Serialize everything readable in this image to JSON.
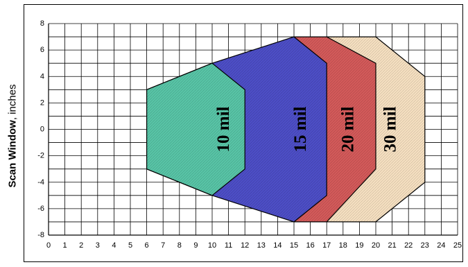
{
  "chart_data": {
    "type": "area",
    "title": "",
    "xlabel": "",
    "ylabel_bold": "Scan Window",
    "ylabel_rest": ", inches",
    "xlim": [
      0,
      25
    ],
    "ylim": [
      -8,
      8
    ],
    "x_ticks": [
      "0",
      "1",
      "2",
      "3",
      "4",
      "5",
      "6",
      "7",
      "8",
      "9",
      "10",
      "11",
      "12",
      "13",
      "14",
      "15",
      "16",
      "17",
      "18",
      "19",
      "20",
      "21",
      "22",
      "23",
      "24",
      "25"
    ],
    "y_ticks": [
      "8",
      "6",
      "4",
      "2",
      "0",
      "-2",
      "-4",
      "-6",
      "-8"
    ],
    "grid": true,
    "series": [
      {
        "name": "30 mil",
        "color": "#f5dfc0",
        "label_at": [
          20.9,
          0
        ],
        "points": [
          [
            17,
            7
          ],
          [
            20,
            7
          ],
          [
            23,
            4
          ],
          [
            23,
            -4
          ],
          [
            20,
            -7
          ],
          [
            17,
            -7
          ]
        ]
      },
      {
        "name": "20 mil",
        "color": "#d35a5a",
        "label_at": [
          18.3,
          0
        ],
        "points": [
          [
            15,
            7
          ],
          [
            17,
            7
          ],
          [
            20,
            5
          ],
          [
            20,
            3
          ],
          [
            20,
            -3
          ],
          [
            17,
            -7
          ],
          [
            15,
            -7
          ]
        ]
      },
      {
        "name": "15 mil",
        "color": "#4d4ec6",
        "label_at": [
          15.4,
          0
        ],
        "points": [
          [
            6,
            3
          ],
          [
            10,
            5
          ],
          [
            15,
            7
          ],
          [
            17,
            5
          ],
          [
            17,
            -5
          ],
          [
            15,
            -7
          ],
          [
            10,
            -5
          ],
          [
            6,
            -3
          ]
        ]
      },
      {
        "name": "10 mil",
        "color": "#58c4a6",
        "label_at": [
          10.7,
          0
        ],
        "points": [
          [
            6,
            3
          ],
          [
            10,
            5
          ],
          [
            12,
            3
          ],
          [
            12,
            -3
          ],
          [
            10,
            -5
          ],
          [
            6,
            -3
          ]
        ]
      }
    ]
  }
}
